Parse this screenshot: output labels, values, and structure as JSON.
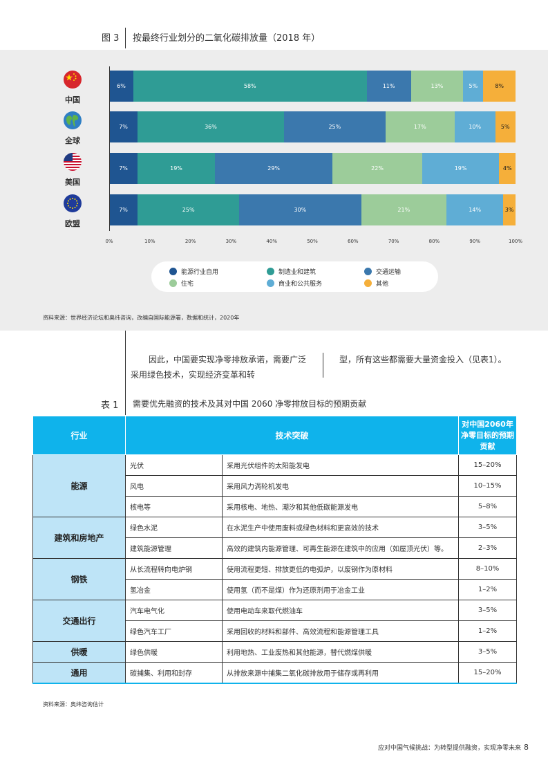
{
  "figure": {
    "number": "图 3",
    "title": "按最终行业划分的二氧化碳排放量（2018 年）",
    "source": "资料来源：世界经济论坛和奥纬咨询，改编自国际能源署，数据和统计，2020年"
  },
  "chart_data": {
    "type": "bar",
    "orientation": "horizontal-stacked-100",
    "categories": [
      "中国",
      "全球",
      "美国",
      "欧盟"
    ],
    "series": [
      {
        "name": "能源行业自用",
        "color": "#1f5591",
        "values": [
          6,
          7,
          7,
          7
        ]
      },
      {
        "name": "制造业和建筑",
        "color": "#2f9c95",
        "values": [
          58,
          36,
          19,
          25
        ]
      },
      {
        "name": "交通运输",
        "color": "#3b78ad",
        "values": [
          11,
          25,
          29,
          30
        ]
      },
      {
        "name": "住宅",
        "color": "#9ccc9a",
        "values": [
          13,
          17,
          22,
          21
        ]
      },
      {
        "name": "商业和公共服务",
        "color": "#5fadd5",
        "values": [
          5,
          10,
          19,
          14
        ]
      },
      {
        "name": "其他",
        "color": "#f5af3a",
        "values": [
          8,
          5,
          4,
          3
        ]
      }
    ],
    "xlim": [
      0,
      100
    ],
    "xticks": [
      "0%",
      "10%",
      "20%",
      "30%",
      "40%",
      "50%",
      "60%",
      "70%",
      "80%",
      "90%",
      "100%"
    ],
    "legend_position": "bottom",
    "flags": [
      "china-flag",
      "globe",
      "us-flag",
      "eu-flag"
    ]
  },
  "body": {
    "para_left": "因此，中国要实现净零排放承诺，需要广泛采用绿色技术，实现经济变革和转",
    "para_right": "型，所有这些都需要大量资金投入（见表1）。"
  },
  "table": {
    "number": "表 1",
    "title": "需要优先融资的技术及其对中国 2060 净零排放目标的预期贡献",
    "headers": {
      "sector": "行业",
      "tech": "技术突破",
      "contribution": "对中国2060年净零目标的预期贡献"
    },
    "groups": [
      {
        "sector": "能源",
        "rows": [
          {
            "tech": "光伏",
            "desc": "采用光伏组件的太阳能发电",
            "value": "15–20%"
          },
          {
            "tech": "风电",
            "desc": "采用风力涡轮机发电",
            "value": "10–15%"
          },
          {
            "tech": "核电等",
            "desc": "采用核电、地热、潮汐和其他低碳能源发电",
            "value": "5–8%"
          }
        ]
      },
      {
        "sector": "建筑和房地产",
        "rows": [
          {
            "tech": "绿色水泥",
            "desc": "在水泥生产中使用废料或绿色材料和更高效的技术",
            "value": "3–5%"
          },
          {
            "tech": "建筑能源管理",
            "desc": "高效的建筑内能源管理、可再生能源在建筑中的应用（如屋顶光伏）等。",
            "value": "2–3%"
          }
        ]
      },
      {
        "sector": "钢铁",
        "rows": [
          {
            "tech": "从长流程转向电炉钢",
            "desc": "使用流程更短、排放更低的电弧炉，以废钢作为原材料",
            "value": "8–10%"
          },
          {
            "tech": "氢冶金",
            "desc": "使用氢（而不是煤）作为还原剂用于冶金工业",
            "value": "1–2%"
          }
        ]
      },
      {
        "sector": "交通出行",
        "rows": [
          {
            "tech": "汽车电气化",
            "desc": "使用电动车来取代燃油车",
            "value": "3–5%"
          },
          {
            "tech": "绿色汽车工厂",
            "desc": "采用回收的材料和部件、高效流程和能源管理工具",
            "value": "1–2%"
          }
        ]
      },
      {
        "sector": "供暖",
        "rows": [
          {
            "tech": "绿色供暖",
            "desc": "利用地热、工业废热和其他能源，替代燃煤供暖",
            "value": "3–5%"
          }
        ]
      },
      {
        "sector": "通用",
        "rows": [
          {
            "tech": "碳捕集、利用和封存",
            "desc": "从排放来源中捕集二氧化碳排放用于储存或再利用",
            "value": "15–20%"
          }
        ]
      }
    ],
    "source": "资料来源：奥纬咨询估计"
  },
  "footer": {
    "text": "应对中国气候挑战：为转型提供融资，实现净零未来",
    "page": "8"
  }
}
